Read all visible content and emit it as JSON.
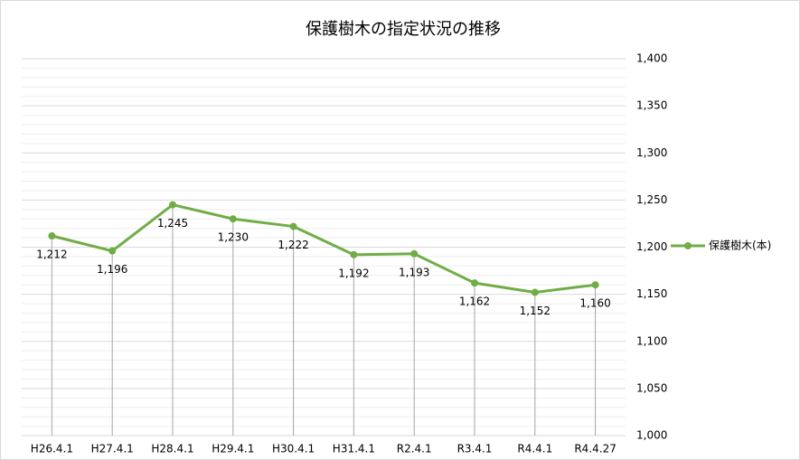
{
  "chart_data": {
    "type": "line",
    "title": "保護樹木の指定状況の推移",
    "categories": [
      "H26.4.1",
      "H27.4.1",
      "H28.4.1",
      "H29.4.1",
      "H30.4.1",
      "H31.4.1",
      "R2.4.1",
      "R3.4.1",
      "R4.4.1",
      "R4.4.27"
    ],
    "series": [
      {
        "name": "保護樹木(本)",
        "color": "#70ad47",
        "values": [
          1212,
          1196,
          1245,
          1230,
          1222,
          1192,
          1193,
          1162,
          1152,
          1160
        ],
        "value_labels": [
          "1,212",
          "1,196",
          "1,245",
          "1,230",
          "1,222",
          "1,192",
          "1,193",
          "1,162",
          "1,152",
          "1,160"
        ]
      }
    ],
    "ylim": [
      1000,
      1400
    ],
    "yticks": [
      {
        "value": 1000,
        "label": "1,000"
      },
      {
        "value": 1050,
        "label": "1,050"
      },
      {
        "value": 1100,
        "label": "1,100"
      },
      {
        "value": 1150,
        "label": "1,150"
      },
      {
        "value": 1200,
        "label": "1,200"
      },
      {
        "value": 1250,
        "label": "1,250"
      },
      {
        "value": 1300,
        "label": "1,300"
      },
      {
        "value": 1350,
        "label": "1,350"
      },
      {
        "value": 1400,
        "label": "1,400"
      }
    ],
    "yminorticks": [
      1010,
      1020,
      1030,
      1040,
      1060,
      1070,
      1080,
      1090,
      1110,
      1120,
      1130,
      1140,
      1160,
      1170,
      1180,
      1190,
      1210,
      1220,
      1230,
      1240,
      1260,
      1270,
      1280,
      1290,
      1310,
      1320,
      1330,
      1340,
      1360,
      1370,
      1380,
      1390
    ],
    "grid": true,
    "drop_lines": true,
    "legend": "right"
  }
}
